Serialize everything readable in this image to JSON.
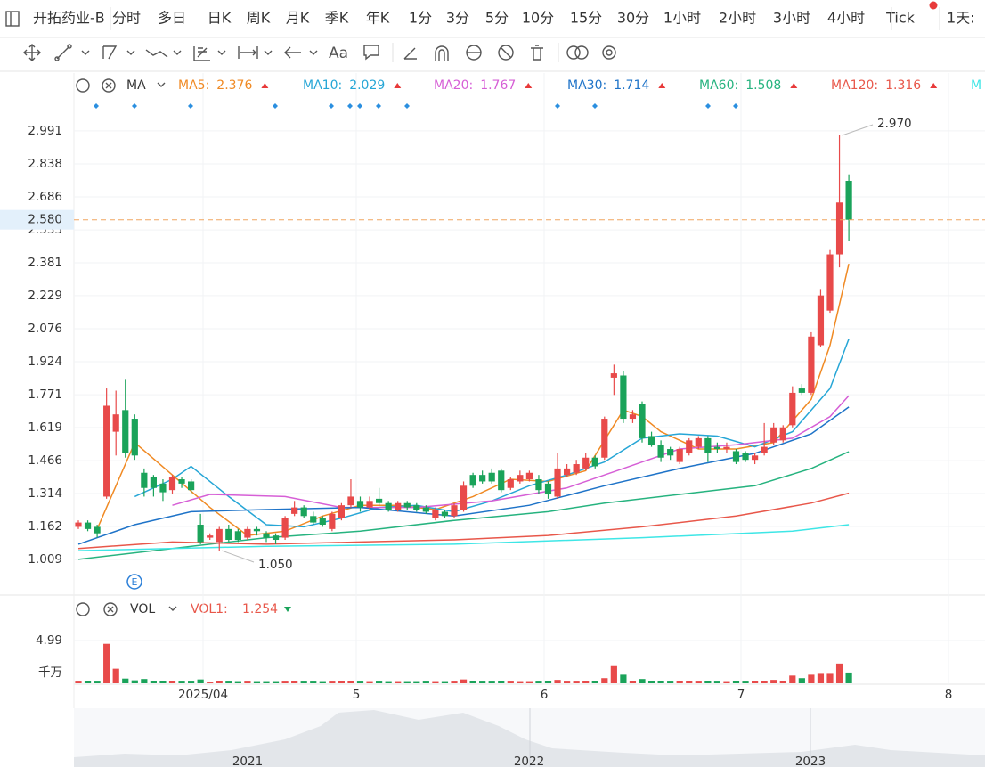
{
  "toolbar": {
    "symbol": "开拓药业-B",
    "periods": [
      "分时",
      "多日",
      "日K",
      "周K",
      "月K",
      "季K",
      "年K",
      "1分",
      "3分",
      "5分",
      "10分",
      "15分",
      "30分",
      "1小时",
      "2小时",
      "3小时",
      "4小时",
      "Tick",
      "1天:"
    ],
    "selected": "日K"
  },
  "indicator_bar": {
    "name": "MA"
  },
  "volume_bar": {
    "name": "VOL",
    "series_name": "VOL1:",
    "unit": "千万"
  },
  "x_labels": [
    "2025/04",
    "5",
    "6",
    "7",
    "8"
  ],
  "navigator_labels": [
    "2021",
    "2022",
    "2023"
  ],
  "chart_data": {
    "type": "candlestick",
    "up_color": "#e84a4a",
    "down_color": "#1aa35a",
    "grid": true,
    "ylim": [
      0.857,
      3.246
    ],
    "yticks": [
      1.009,
      1.162,
      1.314,
      1.466,
      1.619,
      1.771,
      1.924,
      2.076,
      2.229,
      2.381,
      2.533,
      2.686,
      2.838,
      2.991
    ],
    "last_price": {
      "value": 2.58,
      "label": "2.580"
    },
    "high_label": "2.970",
    "low_label": "1.050",
    "open": [
      1.16,
      1.18,
      1.16,
      1.3,
      1.6,
      1.7,
      1.66,
      1.41,
      1.39,
      1.36,
      1.33,
      1.38,
      1.37,
      1.17,
      1.11,
      1.09,
      1.15,
      1.14,
      1.11,
      1.15,
      1.13,
      1.12,
      1.11,
      1.22,
      1.25,
      1.21,
      1.2,
      1.15,
      1.2,
      1.26,
      1.28,
      1.25,
      1.29,
      1.27,
      1.24,
      1.27,
      1.26,
      1.25,
      1.2,
      1.23,
      1.21,
      1.24,
      1.4,
      1.4,
      1.41,
      1.42,
      1.34,
      1.37,
      1.38,
      1.38,
      1.36,
      1.3,
      1.4,
      1.41,
      1.43,
      1.48,
      1.48,
      1.85,
      1.86,
      1.66,
      1.73,
      1.58,
      1.54,
      1.52,
      1.46,
      1.5,
      1.53,
      1.57,
      1.53,
      1.52,
      1.51,
      1.5,
      1.47,
      1.5,
      1.55,
      1.56,
      1.63,
      1.8,
      1.78,
      2.0,
      2.16,
      2.42,
      2.76
    ],
    "high": [
      1.19,
      1.19,
      1.17,
      1.8,
      1.79,
      1.84,
      1.68,
      1.43,
      1.4,
      1.38,
      1.4,
      1.39,
      1.38,
      1.22,
      1.13,
      1.16,
      1.17,
      1.15,
      1.16,
      1.16,
      1.14,
      1.13,
      1.21,
      1.28,
      1.26,
      1.23,
      1.21,
      1.23,
      1.27,
      1.38,
      1.3,
      1.3,
      1.34,
      1.28,
      1.28,
      1.28,
      1.27,
      1.26,
      1.25,
      1.24,
      1.27,
      1.37,
      1.41,
      1.42,
      1.43,
      1.43,
      1.39,
      1.42,
      1.42,
      1.4,
      1.37,
      1.5,
      1.45,
      1.47,
      1.5,
      1.49,
      1.67,
      1.91,
      1.88,
      1.7,
      1.74,
      1.6,
      1.56,
      1.53,
      1.53,
      1.57,
      1.58,
      1.58,
      1.55,
      1.55,
      1.52,
      1.51,
      1.5,
      1.64,
      1.64,
      1.63,
      1.81,
      1.82,
      2.06,
      2.26,
      2.44,
      2.97,
      2.79
    ],
    "low": [
      1.15,
      1.14,
      1.11,
      1.29,
      1.49,
      1.48,
      1.47,
      1.3,
      1.3,
      1.28,
      1.31,
      1.34,
      1.31,
      1.08,
      1.1,
      1.05,
      1.09,
      1.09,
      1.1,
      1.12,
      1.09,
      1.08,
      1.1,
      1.21,
      1.2,
      1.17,
      1.16,
      1.14,
      1.19,
      1.25,
      1.23,
      1.24,
      1.26,
      1.23,
      1.23,
      1.24,
      1.23,
      1.22,
      1.19,
      1.2,
      1.2,
      1.23,
      1.34,
      1.36,
      1.36,
      1.32,
      1.33,
      1.36,
      1.37,
      1.31,
      1.29,
      1.29,
      1.39,
      1.4,
      1.42,
      1.43,
      1.47,
      1.77,
      1.64,
      1.64,
      1.55,
      1.53,
      1.46,
      1.47,
      1.45,
      1.49,
      1.52,
      1.46,
      1.5,
      1.5,
      1.45,
      1.46,
      1.45,
      1.49,
      1.54,
      1.55,
      1.62,
      1.77,
      1.77,
      1.99,
      2.15,
      2.36,
      2.48
    ],
    "close": [
      1.18,
      1.15,
      1.13,
      1.72,
      1.68,
      1.5,
      1.49,
      1.34,
      1.34,
      1.32,
      1.39,
      1.36,
      1.33,
      1.09,
      1.12,
      1.15,
      1.1,
      1.1,
      1.15,
      1.14,
      1.11,
      1.1,
      1.2,
      1.25,
      1.21,
      1.18,
      1.17,
      1.22,
      1.26,
      1.3,
      1.25,
      1.28,
      1.27,
      1.24,
      1.27,
      1.25,
      1.24,
      1.23,
      1.24,
      1.21,
      1.26,
      1.35,
      1.35,
      1.37,
      1.37,
      1.33,
      1.38,
      1.4,
      1.41,
      1.33,
      1.31,
      1.43,
      1.43,
      1.45,
      1.48,
      1.44,
      1.66,
      1.87,
      1.66,
      1.68,
      1.57,
      1.54,
      1.48,
      1.49,
      1.52,
      1.56,
      1.57,
      1.5,
      1.52,
      1.53,
      1.46,
      1.47,
      1.49,
      1.53,
      1.62,
      1.62,
      1.78,
      1.78,
      2.04,
      2.23,
      2.42,
      2.66,
      2.58
    ],
    "volume": [
      0.2,
      0.25,
      0.2,
      4.6,
      1.7,
      0.55,
      0.35,
      0.5,
      0.3,
      0.25,
      0.3,
      0.2,
      0.2,
      0.45,
      0.1,
      0.25,
      0.2,
      0.15,
      0.2,
      0.15,
      0.15,
      0.15,
      0.2,
      0.3,
      0.2,
      0.2,
      0.15,
      0.2,
      0.25,
      0.3,
      0.2,
      0.15,
      0.2,
      0.15,
      0.15,
      0.15,
      0.15,
      0.2,
      0.15,
      0.15,
      0.2,
      0.45,
      0.3,
      0.2,
      0.2,
      0.25,
      0.2,
      0.15,
      0.15,
      0.2,
      0.25,
      0.4,
      0.2,
      0.2,
      0.3,
      0.25,
      0.6,
      2.0,
      1.0,
      0.3,
      0.5,
      0.3,
      0.3,
      0.2,
      0.25,
      0.3,
      0.2,
      0.3,
      0.2,
      0.15,
      0.25,
      0.2,
      0.25,
      0.3,
      0.4,
      0.3,
      0.9,
      0.6,
      1.0,
      1.1,
      1.1,
      2.3,
      1.254
    ],
    "vol_ylim": [
      0,
      6.44
    ],
    "vol_yticks": [
      4.99
    ],
    "ma": [
      {
        "name": "MA5:",
        "color": "#f08a24",
        "x": [
          2,
          6,
          10,
          14,
          18,
          22,
          26,
          30,
          34,
          38,
          42,
          46,
          50,
          54,
          58,
          60,
          62,
          66,
          70,
          74,
          78,
          80,
          82
        ],
        "values": [
          1.15,
          1.55,
          1.4,
          1.25,
          1.12,
          1.14,
          1.21,
          1.26,
          1.26,
          1.24,
          1.3,
          1.38,
          1.37,
          1.42,
          1.7,
          1.67,
          1.6,
          1.52,
          1.52,
          1.55,
          1.75,
          2.0,
          2.376
        ]
      },
      {
        "name": "MA10:",
        "color": "#26a6d6",
        "x": [
          6,
          10,
          12,
          16,
          20,
          24,
          28,
          32,
          36,
          40,
          44,
          48,
          52,
          56,
          60,
          64,
          68,
          72,
          76,
          80,
          82
        ],
        "values": [
          1.3,
          1.38,
          1.44,
          1.3,
          1.17,
          1.16,
          1.2,
          1.25,
          1.26,
          1.23,
          1.28,
          1.35,
          1.4,
          1.46,
          1.57,
          1.59,
          1.58,
          1.53,
          1.6,
          1.8,
          2.029
        ]
      },
      {
        "name": "MA20:",
        "color": "#d65fd6",
        "x": [
          10,
          14,
          22,
          28,
          36,
          44,
          52,
          58,
          64,
          70,
          76,
          80,
          82
        ],
        "values": [
          1.26,
          1.31,
          1.3,
          1.25,
          1.25,
          1.28,
          1.34,
          1.43,
          1.52,
          1.54,
          1.57,
          1.67,
          1.767
        ]
      },
      {
        "name": "MA30:",
        "color": "#1e73c8",
        "x": [
          0,
          6,
          12,
          20,
          30,
          40,
          48,
          56,
          64,
          72,
          78,
          82
        ],
        "values": [
          1.08,
          1.17,
          1.23,
          1.24,
          1.25,
          1.21,
          1.26,
          1.35,
          1.43,
          1.5,
          1.59,
          1.714
        ]
      },
      {
        "name": "MA60:",
        "color": "#26b37f",
        "x": [
          0,
          10,
          20,
          30,
          40,
          50,
          56,
          64,
          72,
          78,
          82
        ],
        "values": [
          1.01,
          1.06,
          1.11,
          1.14,
          1.19,
          1.23,
          1.27,
          1.31,
          1.35,
          1.43,
          1.508
        ]
      },
      {
        "name": "MA120:",
        "color": "#e8574a",
        "x": [
          0,
          10,
          20,
          30,
          40,
          50,
          60,
          70,
          78,
          82
        ],
        "values": [
          1.06,
          1.09,
          1.08,
          1.09,
          1.1,
          1.12,
          1.16,
          1.21,
          1.27,
          1.316
        ]
      },
      {
        "name": "M",
        "color": "#3ee6e6",
        "x": [
          0,
          20,
          40,
          60,
          76,
          82
        ],
        "values": [
          1.05,
          1.07,
          1.08,
          1.11,
          1.14,
          1.17
        ]
      }
    ]
  }
}
